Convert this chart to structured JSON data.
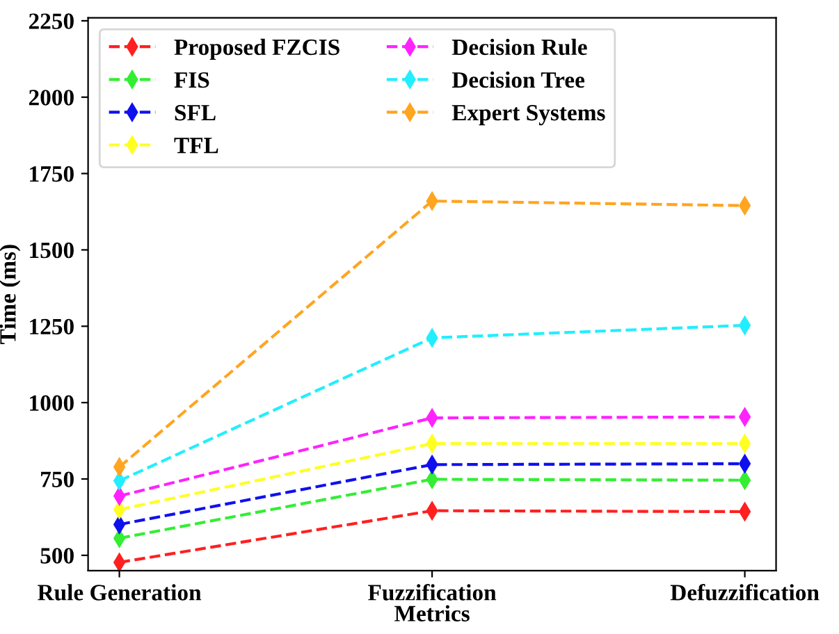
{
  "chart_data": {
    "type": "line",
    "xlabel": "Metrics",
    "ylabel": "Time (ms)",
    "categories": [
      "Rule Generation",
      "Fuzzification",
      "Defuzzification"
    ],
    "series": [
      {
        "name": "Proposed FZCIS",
        "color": "#ff2020",
        "values": [
          477,
          646,
          643
        ]
      },
      {
        "name": "FIS",
        "color": "#33ee33",
        "values": [
          556,
          749,
          746
        ]
      },
      {
        "name": "SFL",
        "color": "#1010ee",
        "values": [
          601,
          797,
          800
        ]
      },
      {
        "name": "TFL",
        "color": "#ffff22",
        "values": [
          650,
          866,
          866
        ]
      },
      {
        "name": "Decision Rule",
        "color": "#ff22ff",
        "values": [
          694,
          950,
          953
        ]
      },
      {
        "name": "Decision Tree",
        "color": "#22eeff",
        "values": [
          744,
          1212,
          1253
        ]
      },
      {
        "name": "Expert Systems",
        "color": "#ffa520",
        "values": [
          789,
          1660,
          1645
        ]
      }
    ],
    "ylim": [
      450,
      2260
    ],
    "yticks": [
      500,
      750,
      1000,
      1250,
      1500,
      1750,
      2000,
      2250
    ],
    "marker": "diamond",
    "line_style": "dashed",
    "legend": "top left",
    "grid": false
  }
}
